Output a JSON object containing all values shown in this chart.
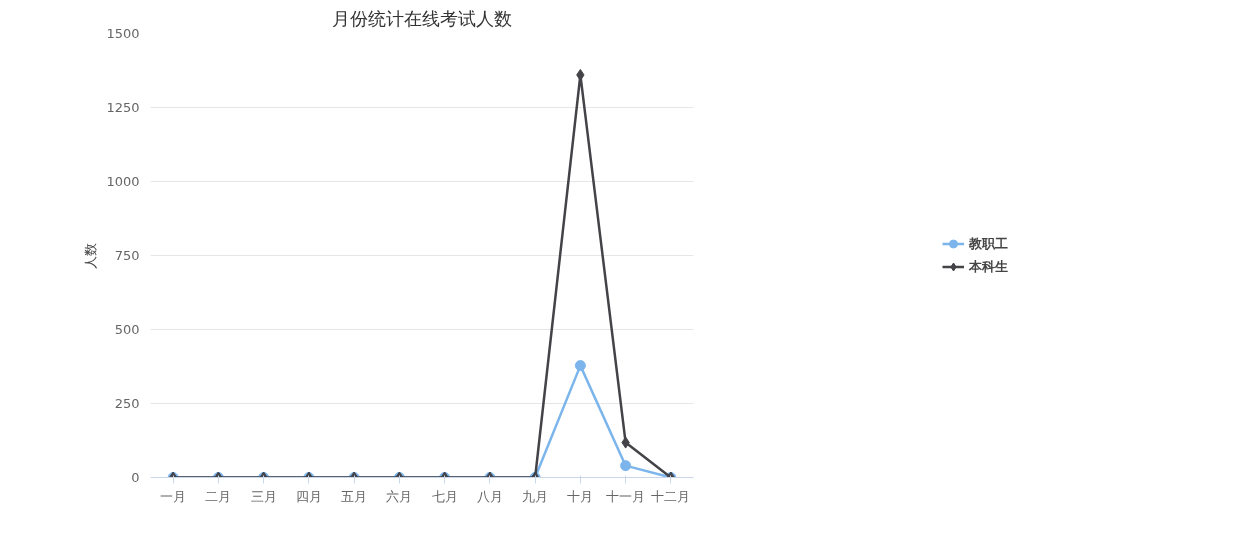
{
  "chart_data": {
    "type": "line",
    "title": "月份统计在线考试人数",
    "ylabel": "人数",
    "categories": [
      "一月",
      "二月",
      "三月",
      "四月",
      "五月",
      "六月",
      "七月",
      "八月",
      "九月",
      "十月",
      "十一月",
      "十二月"
    ],
    "series": [
      {
        "name": "教职工",
        "color": "#7cb5ec",
        "marker": "circle",
        "values": [
          0,
          0,
          0,
          0,
          0,
          0,
          0,
          0,
          0,
          378,
          40,
          0
        ]
      },
      {
        "name": "本科生",
        "color": "#434348",
        "marker": "diamond",
        "values": [
          0,
          0,
          0,
          0,
          0,
          0,
          0,
          0,
          0,
          1360,
          118,
          0
        ]
      }
    ],
    "ylim": [
      0,
      1500
    ],
    "yticks": [
      0,
      250,
      500,
      750,
      1000,
      1250,
      1500
    ],
    "grid": "y",
    "legend": "right"
  }
}
